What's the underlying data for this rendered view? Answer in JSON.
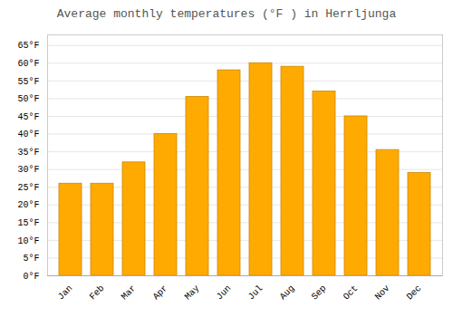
{
  "chart_data": {
    "type": "bar",
    "title": "Average monthly temperatures (°F ) in Herrljunga",
    "categories": [
      "Jan",
      "Feb",
      "Mar",
      "Apr",
      "May",
      "Jun",
      "Jul",
      "Aug",
      "Sep",
      "Oct",
      "Nov",
      "Dec"
    ],
    "values": [
      26,
      26,
      32,
      40,
      50.5,
      58,
      60,
      59,
      52,
      45,
      35.5,
      29
    ],
    "color": "#FFAA00",
    "ylim": [
      0,
      68
    ],
    "yticks": [
      {
        "value": 0,
        "label": "0°F"
      },
      {
        "value": 5,
        "label": "5°F"
      },
      {
        "value": 10,
        "label": "10°F"
      },
      {
        "value": 15,
        "label": "15°F"
      },
      {
        "value": 20,
        "label": "20°F"
      },
      {
        "value": 25,
        "label": "25°F"
      },
      {
        "value": 30,
        "label": "30°F"
      },
      {
        "value": 35,
        "label": "35°F"
      },
      {
        "value": 40,
        "label": "40°F"
      },
      {
        "value": 45,
        "label": "45°F"
      },
      {
        "value": 50,
        "label": "50°F"
      },
      {
        "value": 55,
        "label": "55°F"
      },
      {
        "value": 60,
        "label": "60°F"
      },
      {
        "value": 65,
        "label": "65°F"
      }
    ],
    "grid": true
  }
}
